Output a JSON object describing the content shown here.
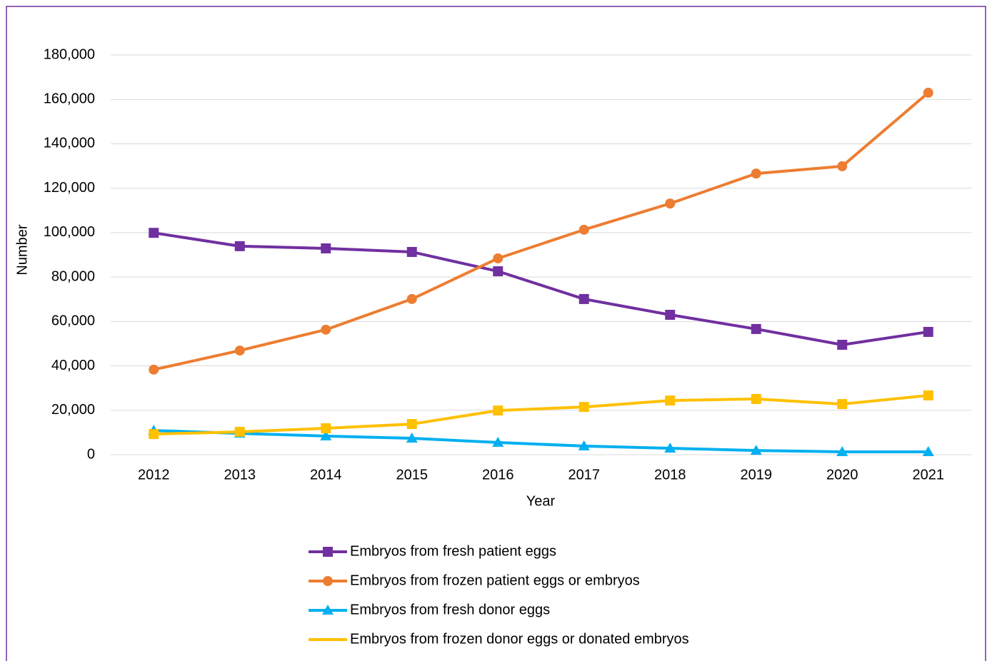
{
  "chart_data": {
    "type": "line",
    "x_label": "Year",
    "y_label": "Number",
    "categories": [
      "2012",
      "2013",
      "2014",
      "2015",
      "2016",
      "2017",
      "2018",
      "2019",
      "2020",
      "2021"
    ],
    "ylim": [
      0,
      180000
    ],
    "yticks": [
      0,
      {
        "value": 20000,
        "label": "20,000"
      },
      {
        "value": 40000,
        "label": "40,000"
      },
      {
        "value": 60000,
        "label": "60,000"
      },
      {
        "value": 80000,
        "label": "80,000"
      },
      {
        "value": 100000,
        "label": "100,000"
      },
      {
        "value": 120000,
        "label": "120,000"
      },
      {
        "value": 140000,
        "label": "140,000"
      },
      {
        "value": 160000,
        "label": "160,000"
      },
      {
        "value": 180000,
        "label": "180,000"
      }
    ],
    "grid": true,
    "legend": "bottom",
    "series": [
      {
        "name": "Embryos from fresh patient eggs",
        "color": "#7030a0",
        "marker": "square",
        "values": [
          99900,
          93900,
          92900,
          91300,
          82600,
          70100,
          63000,
          56600,
          49500,
          55300
        ]
      },
      {
        "name": "Embryos from frozen patient eggs or embryos",
        "color": "#ed7d31",
        "marker": "circle",
        "values": [
          38300,
          46900,
          56300,
          70100,
          88400,
          101300,
          113100,
          126600,
          129900,
          163000
        ]
      },
      {
        "name": "Embryos from fresh donor eggs",
        "color": "#00b0f0",
        "marker": "triangle",
        "values": [
          10900,
          9600,
          8400,
          7400,
          5500,
          3900,
          2900,
          1900,
          1300,
          1300
        ]
      },
      {
        "name": "Embryos from frozen donor eggs or donated embryos",
        "color": "#ffc000",
        "marker": "square",
        "values": [
          9300,
          10300,
          11900,
          13800,
          19900,
          21500,
          24400,
          25100,
          22800,
          26700
        ]
      }
    ]
  }
}
